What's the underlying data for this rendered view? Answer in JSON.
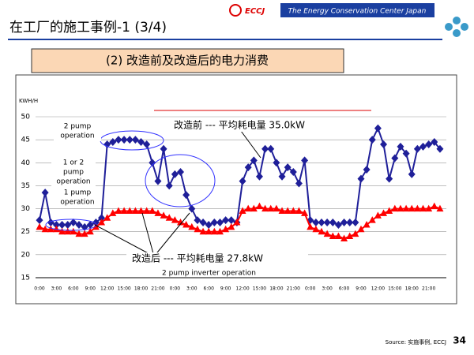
{
  "slide": {
    "title": "在工厂的施工事例-1 (3/4)",
    "logo": "ECCJ",
    "org": "The Energy Conservation Center Japan",
    "subtitle": "(2) 改造前及改造后的电力消费",
    "source": "Source: 实施事例, ECCJ",
    "page_number": "34"
  },
  "chart_data": {
    "type": "line",
    "y_label": "KWH/H",
    "categories": [
      "0:00",
      null,
      null,
      "3:00",
      null,
      null,
      "6:00",
      null,
      null,
      "9:00",
      null,
      null,
      "12:00",
      null,
      null,
      "15:00",
      null,
      null,
      "18:00",
      null,
      null,
      "21:00",
      null,
      null,
      "0:00",
      null,
      null,
      "3:00",
      null,
      null,
      "6:00",
      null,
      null,
      "9:00",
      null,
      null,
      "12:00",
      null,
      null,
      "15:00",
      null,
      null,
      "18:00",
      null,
      null,
      "21:00",
      null,
      null,
      "0:00",
      null,
      null,
      "3:00",
      null,
      null,
      "6:00",
      null,
      null,
      "9:00",
      null,
      null,
      "12:00",
      null,
      null,
      "15:00",
      null,
      null,
      "18:00",
      null,
      null,
      "21:00",
      null,
      null
    ],
    "series": [
      {
        "color": "#1f1f99",
        "marker": "diamond",
        "values": [
          27.5,
          33.5,
          27,
          26.5,
          26.5,
          26.5,
          27,
          26.5,
          26,
          26.5,
          27,
          28,
          44,
          44.5,
          45,
          45,
          45,
          45,
          44.5,
          44,
          40,
          36,
          43,
          35,
          37.5,
          38,
          33,
          30,
          27.5,
          27,
          26.5,
          27,
          27,
          27.5,
          27.5,
          27,
          36,
          39,
          40.5,
          37,
          43,
          43,
          40,
          37,
          39,
          38,
          35.5,
          40.5,
          27.5,
          27,
          27,
          27,
          27,
          26.5,
          27,
          27,
          27,
          36.5,
          38.5,
          45,
          47.5,
          44,
          36.5,
          41,
          43.5,
          42,
          37.5,
          43,
          43.5,
          44,
          44.5,
          43
        ]
      },
      {
        "color": "#ff0000",
        "marker": "triangle",
        "values": [
          26,
          25.5,
          25.5,
          25.5,
          25,
          25,
          25,
          24.5,
          24.5,
          25,
          26,
          27,
          28,
          29,
          29.5,
          29.5,
          29.5,
          29.5,
          29.5,
          29.5,
          29.5,
          29,
          28.5,
          28,
          27.5,
          27,
          26.5,
          26,
          25.5,
          25,
          25,
          25,
          25,
          25.5,
          26,
          27,
          29.5,
          30,
          30,
          30.5,
          30,
          30,
          30,
          29.5,
          29.5,
          29.5,
          29.5,
          29,
          26,
          25.5,
          25,
          24.5,
          24,
          24,
          23.5,
          24,
          24.5,
          25.5,
          26.5,
          27.5,
          28.5,
          29,
          29.5,
          30,
          30,
          30,
          30,
          30,
          30,
          30,
          30.5,
          30
        ]
      }
    ],
    "ylim": [
      15,
      50
    ],
    "yticks": [
      15,
      20,
      25,
      30,
      35,
      40,
      45,
      50
    ],
    "grid": true,
    "annotations": {
      "two_pump": [
        "2 pump",
        "operation"
      ],
      "one_or_two": [
        "1 or 2",
        "pump",
        "operation"
      ],
      "one_pump": [
        "1 pump",
        "operation"
      ],
      "before": "改造前  ---  平均耗电量 35.0kW",
      "after": "改造后 ---  平均耗电量 27.8kW",
      "inverter": "2 pump inverter operation"
    }
  }
}
